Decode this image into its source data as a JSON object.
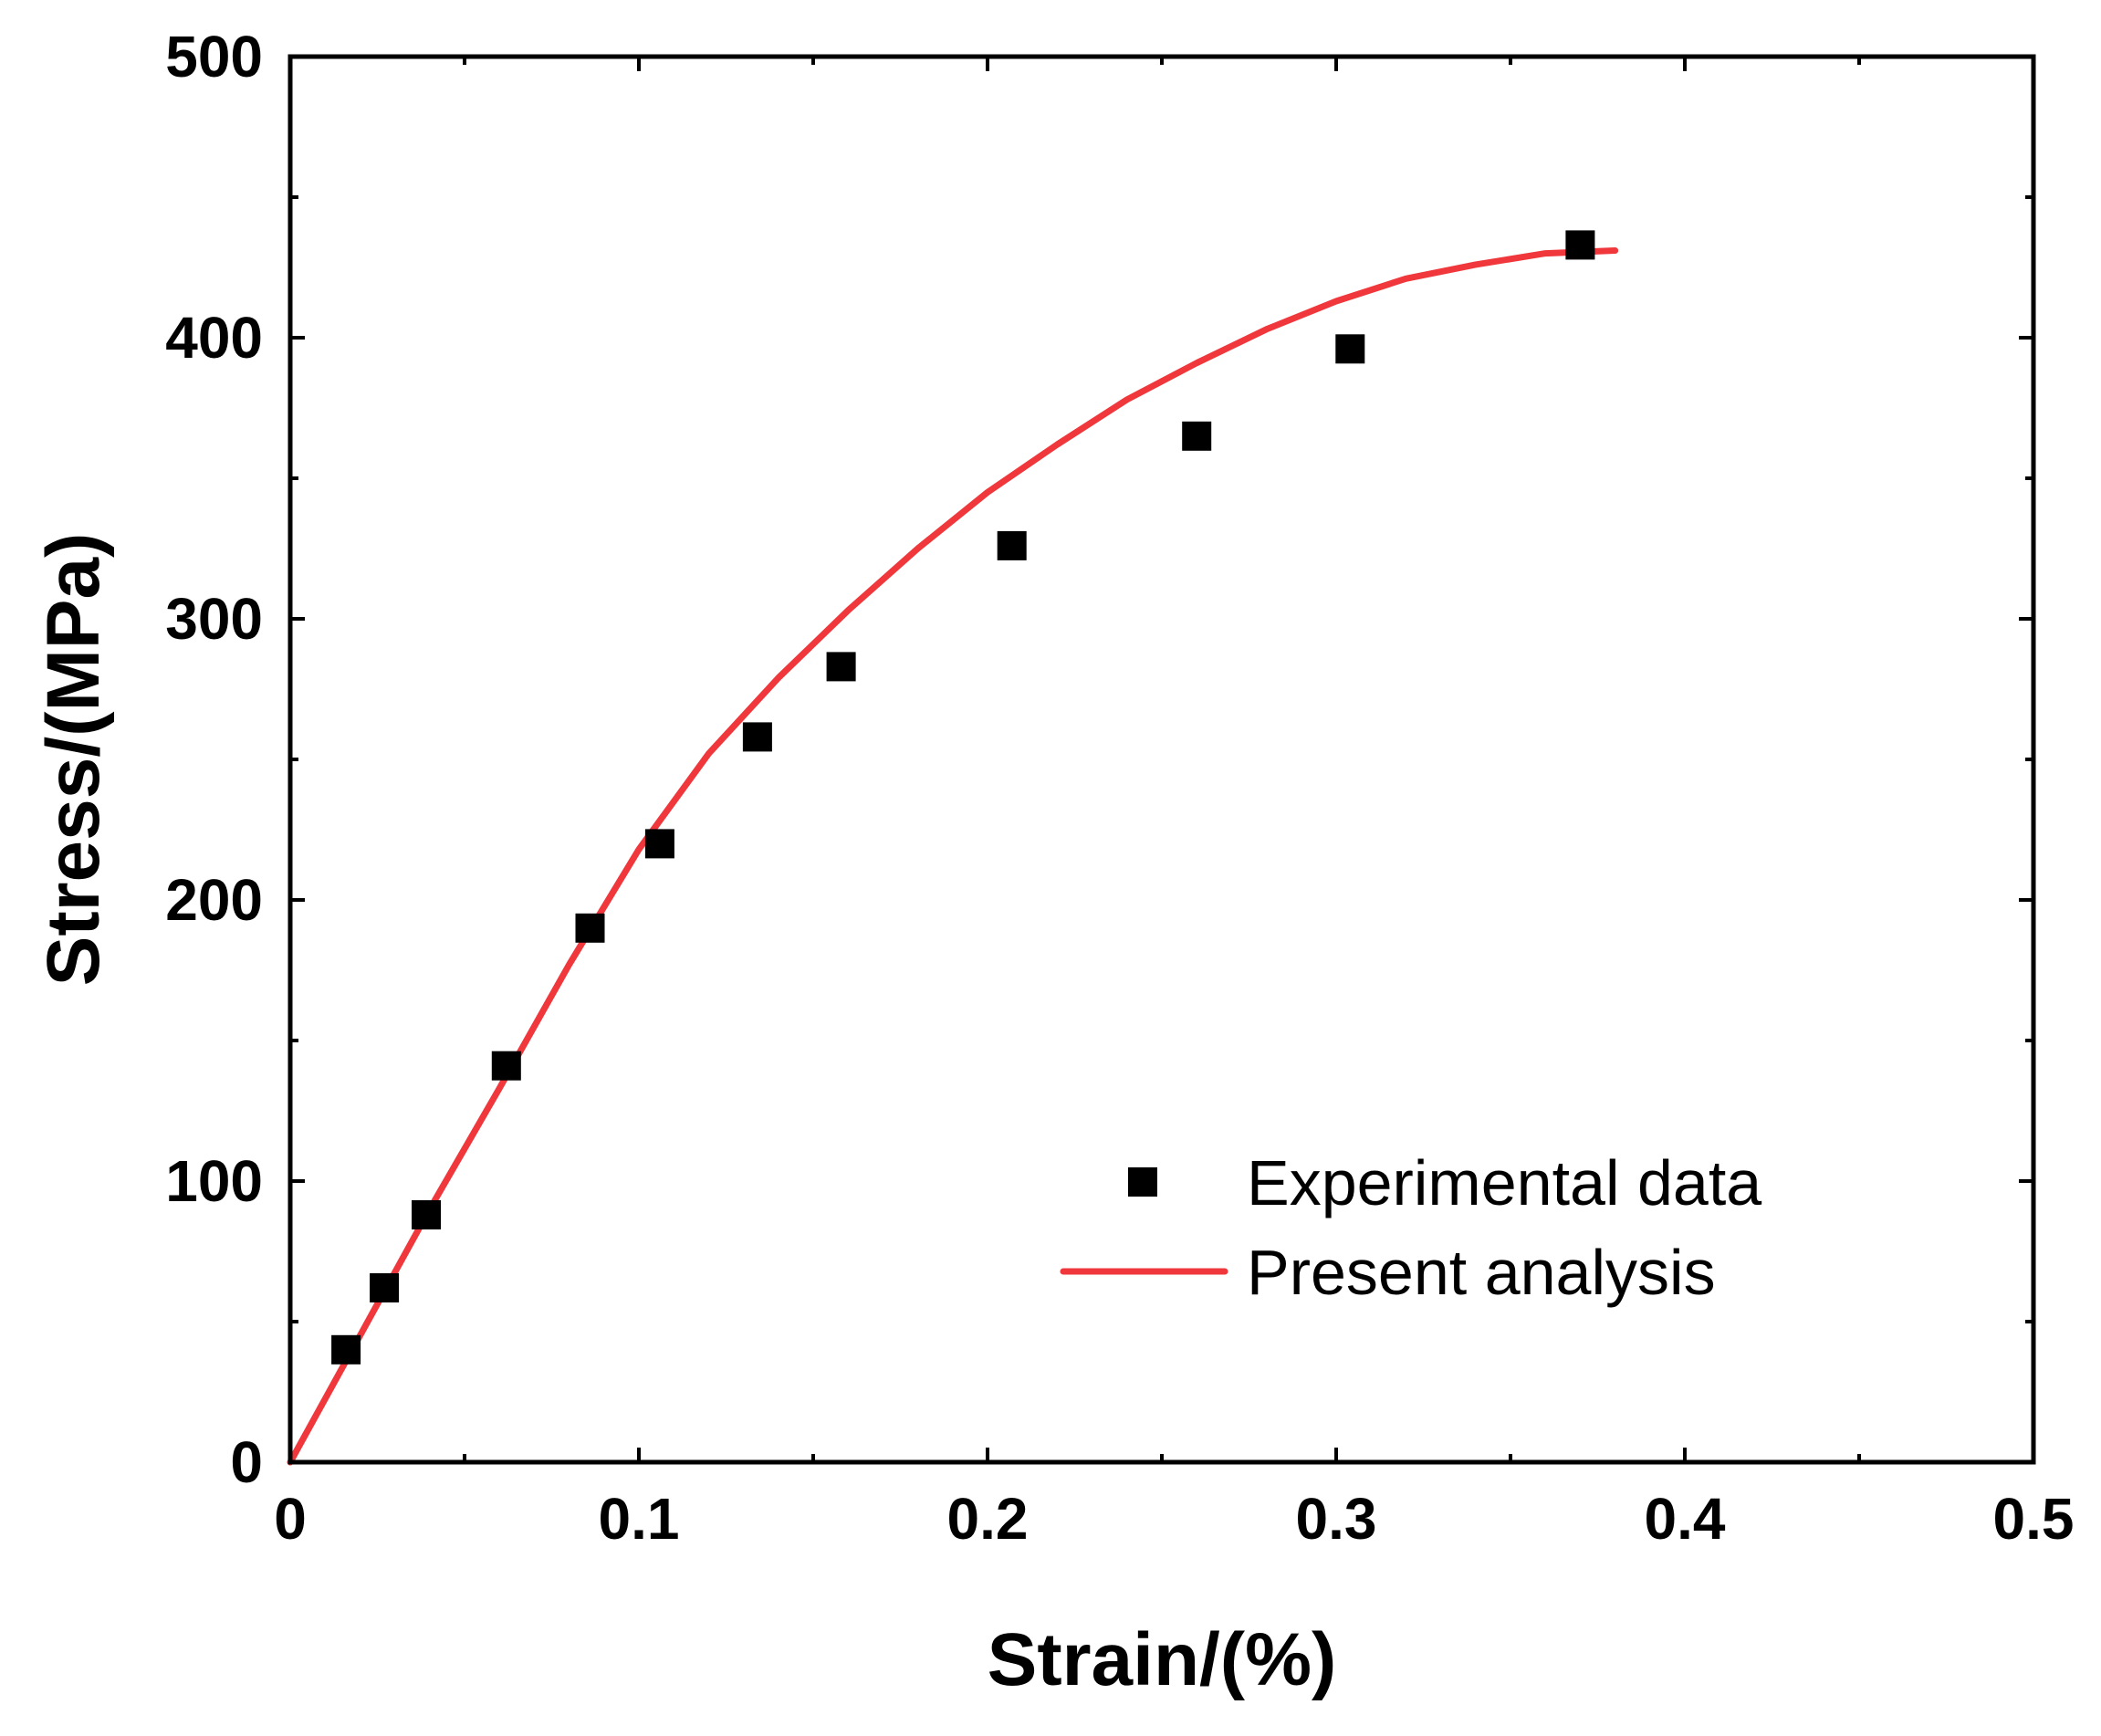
{
  "chart_data": {
    "type": "scatter",
    "title": "",
    "xlabel": "Strain/(%)",
    "ylabel": "Stress/(MPa)",
    "xlim": [
      0,
      0.5
    ],
    "ylim": [
      0,
      500
    ],
    "xticks": [
      0,
      0.1,
      0.2,
      0.3,
      0.4,
      0.5
    ],
    "xtick_labels": [
      "0",
      "0.1",
      "0.2",
      "0.3",
      "0.4",
      "0.5"
    ],
    "yticks": [
      0,
      100,
      200,
      300,
      400,
      500
    ],
    "ytick_labels": [
      "0",
      "100",
      "200",
      "300",
      "400",
      "500"
    ],
    "x_minor_step": 0.05,
    "y_minor_step": 50,
    "grid": false,
    "legend_position": "bottom-right",
    "series": [
      {
        "name": "Experimental data",
        "kind": "scatter",
        "marker": "square",
        "color": "#000000",
        "x": [
          0.016,
          0.027,
          0.039,
          0.062,
          0.086,
          0.106,
          0.134,
          0.158,
          0.207,
          0.26,
          0.304,
          0.37
        ],
        "y": [
          40,
          62,
          88,
          141,
          190,
          220,
          258,
          283,
          326,
          365,
          396,
          433
        ]
      },
      {
        "name": "Present analysis",
        "kind": "line",
        "color": "#f0373c",
        "x": [
          0,
          0.02,
          0.04,
          0.06,
          0.08,
          0.1,
          0.12,
          0.14,
          0.16,
          0.18,
          0.2,
          0.22,
          0.24,
          0.26,
          0.28,
          0.3,
          0.32,
          0.34,
          0.36,
          0.38
        ],
        "y": [
          0,
          45,
          90,
          133,
          177,
          218,
          252,
          279,
          303,
          325,
          345,
          362,
          378,
          391,
          403,
          413,
          421,
          426,
          430,
          431
        ]
      }
    ]
  }
}
